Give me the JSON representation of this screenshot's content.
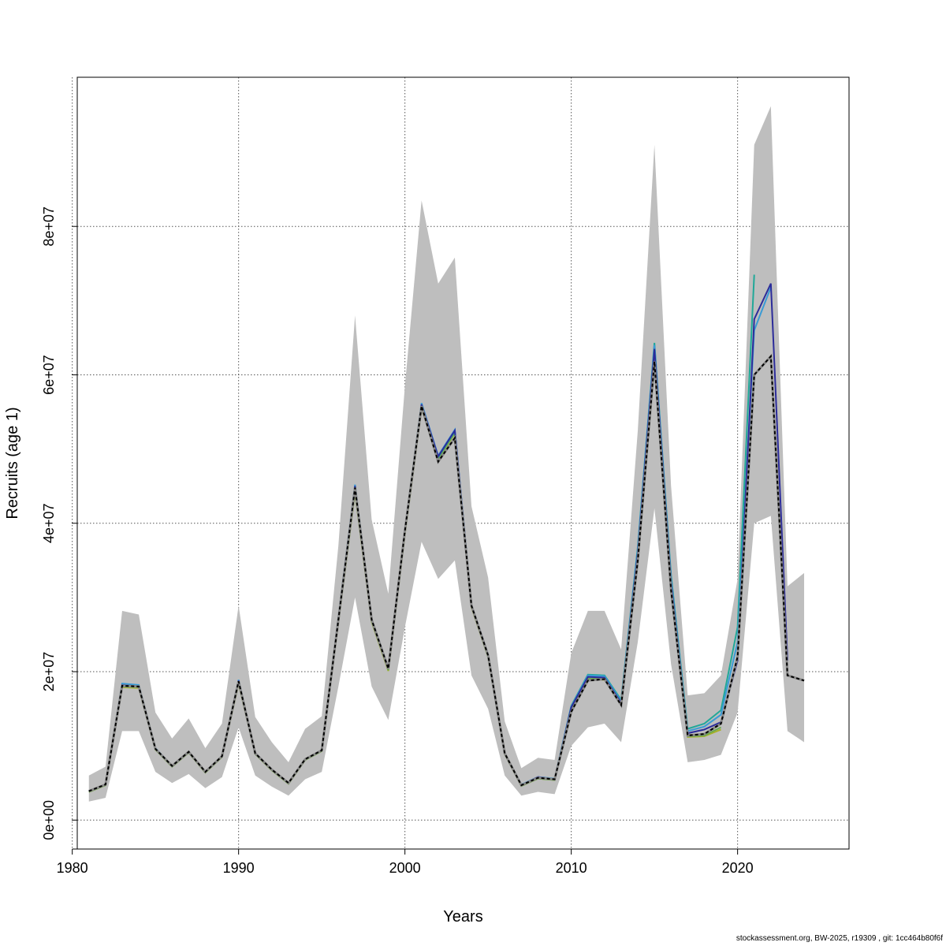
{
  "chart_data": {
    "type": "line",
    "xlabel": "Years",
    "ylabel": "Recruits (age 1)",
    "xlim": [
      1980.3,
      2026.7
    ],
    "ylim": [
      -3900000.0,
      100100000.0
    ],
    "x_ticks": [
      1980,
      1990,
      2000,
      2010,
      2020
    ],
    "x_tick_labels": [
      "1980",
      "1990",
      "2000",
      "2010",
      "2020"
    ],
    "y_ticks": [
      0,
      20000000,
      40000000,
      60000000,
      80000000
    ],
    "y_tick_labels": [
      "0e+00",
      "2e+07",
      "4e+07",
      "6e+07",
      "8e+07"
    ],
    "grid": true,
    "band_color": "#bebebe",
    "band": {
      "x": [
        1981,
        1982,
        1983,
        1984,
        1985,
        1986,
        1987,
        1988,
        1989,
        1990,
        1991,
        1992,
        1993,
        1994,
        1995,
        1996,
        1997,
        1998,
        1999,
        2000,
        2001,
        2002,
        2003,
        2004,
        2005,
        2006,
        2007,
        2008,
        2009,
        2010,
        2011,
        2012,
        2013,
        2014,
        2015,
        2016,
        2017,
        2018,
        2019,
        2020,
        2021,
        2022,
        2023,
        2024
      ],
      "lower": [
        2500000,
        3000000,
        12000000,
        12000000,
        6500000,
        5000000,
        6200000,
        4300000,
        5800000,
        12500000,
        6000000,
        4500000,
        3300000,
        5500000,
        6500000,
        18000000,
        30000000,
        18000000,
        13500000,
        26000000,
        37500000,
        32500000,
        35000000,
        19500000,
        15000000,
        6000000,
        3300000,
        3800000,
        3500000,
        10000000,
        12500000,
        13000000,
        10500000,
        24000000,
        42000000,
        21000000,
        7800000,
        8100000,
        8800000,
        14500000,
        40000000,
        41000000,
        12000000,
        10500000
      ],
      "upper": [
        6000000,
        7200000,
        28200000,
        27700000,
        14500000,
        11000000,
        13700000,
        9700000,
        13000000,
        28900000,
        13900000,
        10500000,
        7800000,
        12300000,
        14000000,
        37000000,
        68000000,
        40500000,
        30500000,
        58500000,
        83500000,
        72300000,
        75800000,
        42300000,
        32700000,
        13300000,
        7000000,
        8400000,
        8100000,
        22500000,
        28200000,
        28200000,
        23000000,
        52500000,
        91000000,
        45000000,
        16800000,
        17100000,
        19500000,
        32500000,
        91000000,
        96200000,
        31500000,
        33300000
      ]
    },
    "series": [
      {
        "color": "#000000",
        "dashed": true,
        "x": [
          1981,
          1982,
          1983,
          1984,
          1985,
          1986,
          1987,
          1988,
          1989,
          1990,
          1991,
          1992,
          1993,
          1994,
          1995,
          1996,
          1997,
          1998,
          1999,
          2000,
          2001,
          2002,
          2003,
          2004,
          2005,
          2006,
          2007,
          2008,
          2009,
          2010,
          2011,
          2012,
          2013,
          2014,
          2015,
          2016,
          2017,
          2018,
          2019,
          2020,
          2021,
          2022,
          2023,
          2024
        ],
        "values": [
          3900000,
          4800000,
          18100000,
          18000000,
          9600000,
          7300000,
          9200000,
          6500000,
          8600000,
          18700000,
          9000000,
          6800000,
          5000000,
          8200000,
          9400000,
          27000000,
          44800000,
          27000000,
          20400000,
          39000000,
          55800000,
          48300000,
          51500000,
          28900000,
          22200000,
          9000000,
          4700000,
          5700000,
          5500000,
          14600000,
          18800000,
          19000000,
          15500000,
          35000000,
          61800000,
          31000000,
          11400000,
          11600000,
          13000000,
          22000000,
          60000000,
          62500000,
          19500000,
          18800000
        ]
      },
      {
        "color": "#2c2c9a",
        "dashed": false,
        "x": [
          1981,
          1982,
          1983,
          1984,
          1985,
          1986,
          1987,
          1988,
          1989,
          1990,
          1991,
          1992,
          1993,
          1994,
          1995,
          1996,
          1997,
          1998,
          1999,
          2000,
          2001,
          2002,
          2003,
          2004,
          2005,
          2006,
          2007,
          2008,
          2009,
          2010,
          2011,
          2012,
          2013,
          2014,
          2015,
          2016,
          2017,
          2018,
          2019,
          2020,
          2021,
          2022,
          2023
        ],
        "values": [
          3900000,
          4800000,
          18200000,
          18000000,
          9600000,
          7300000,
          9200000,
          6500000,
          8600000,
          18800000,
          9000000,
          6800000,
          5000000,
          8200000,
          9400000,
          27200000,
          45000000,
          27000000,
          20400000,
          39000000,
          56000000,
          49000000,
          52500000,
          29000000,
          22300000,
          9000000,
          4700000,
          5800000,
          5500000,
          15200000,
          19300000,
          19200000,
          15800000,
          36000000,
          63500000,
          32000000,
          11700000,
          12200000,
          13200000,
          21500000,
          67500000,
          72300000,
          21500000
        ]
      },
      {
        "color": "#3a9bd5",
        "dashed": false,
        "x": [
          1981,
          1982,
          1983,
          1984,
          1985,
          1986,
          1987,
          1988,
          1989,
          1990,
          1991,
          1992,
          1993,
          1994,
          1995,
          1996,
          1997,
          1998,
          1999,
          2000,
          2001,
          2002,
          2003,
          2004,
          2005,
          2006,
          2007,
          2008,
          2009,
          2010,
          2011,
          2012,
          2013,
          2014,
          2015,
          2016,
          2017,
          2018,
          2019,
          2020,
          2021,
          2022
        ],
        "values": [
          3900000,
          4800000,
          18400000,
          18200000,
          9700000,
          7300000,
          9200000,
          6500000,
          8600000,
          18900000,
          9000000,
          6800000,
          5000000,
          8200000,
          9400000,
          27300000,
          45200000,
          27100000,
          20500000,
          39100000,
          56200000,
          49100000,
          52600000,
          29000000,
          22300000,
          9000000,
          4800000,
          5800000,
          5600000,
          15300000,
          19500000,
          19400000,
          16000000,
          36500000,
          64000000,
          32500000,
          12000000,
          12600000,
          14200000,
          24000000,
          66000000,
          71800000
        ]
      },
      {
        "color": "#20a898",
        "dashed": false,
        "x": [
          1981,
          1982,
          1983,
          1984,
          1985,
          1986,
          1987,
          1988,
          1989,
          1990,
          1991,
          1992,
          1993,
          1994,
          1995,
          1996,
          1997,
          1998,
          1999,
          2000,
          2001,
          2002,
          2003,
          2004,
          2005,
          2006,
          2007,
          2008,
          2009,
          2010,
          2011,
          2012,
          2013,
          2014,
          2015,
          2016,
          2017,
          2018,
          2019,
          2020,
          2021
        ],
        "values": [
          3900000,
          4800000,
          18200000,
          18000000,
          9600000,
          7300000,
          9200000,
          6500000,
          8600000,
          18700000,
          9000000,
          6800000,
          5000000,
          8200000,
          9400000,
          27100000,
          44800000,
          27000000,
          20400000,
          39000000,
          55900000,
          48900000,
          52400000,
          28900000,
          22200000,
          9000000,
          4700000,
          5700000,
          5500000,
          15400000,
          19600000,
          19500000,
          16200000,
          36800000,
          64300000,
          33000000,
          12300000,
          13000000,
          14800000,
          26000000,
          73500000
        ]
      },
      {
        "color": "#6aa84f",
        "dashed": false,
        "x": [
          1981,
          1982,
          1983,
          1984,
          1985,
          1986,
          1987,
          1988,
          1989,
          1990,
          1991,
          1992,
          1993,
          1994,
          1995,
          1996,
          1997,
          1998,
          1999,
          2000,
          2001,
          2002,
          2003,
          2004,
          2005,
          2006,
          2007,
          2008,
          2009,
          2010,
          2011,
          2012,
          2013,
          2014,
          2015,
          2016,
          2017,
          2018,
          2019
        ],
        "values": [
          3800000,
          4700000,
          18000000,
          17900000,
          9500000,
          7200000,
          9100000,
          6400000,
          8500000,
          18500000,
          8900000,
          6700000,
          4900000,
          8100000,
          9300000,
          26800000,
          44300000,
          26800000,
          20200000,
          38700000,
          55600000,
          48700000,
          52200000,
          28800000,
          22000000,
          8900000,
          4600000,
          5600000,
          5400000,
          15000000,
          19100000,
          19000000,
          15700000,
          35500000,
          62000000,
          31500000,
          11300000,
          11400000,
          12500000
        ]
      },
      {
        "color": "#a8b026",
        "dashed": false,
        "x": [
          1981,
          1982,
          1983,
          1984,
          1985,
          1986,
          1987,
          1988,
          1989,
          1990,
          1991,
          1992,
          1993,
          1994,
          1995,
          1996,
          1997,
          1998,
          1999,
          2000,
          2001,
          2002,
          2003,
          2004,
          2005,
          2006,
          2007,
          2008,
          2009,
          2010,
          2011,
          2012,
          2013,
          2014,
          2015,
          2016,
          2017,
          2018,
          2019
        ],
        "values": [
          3800000,
          4700000,
          17900000,
          17800000,
          9500000,
          7200000,
          9100000,
          6400000,
          8500000,
          18400000,
          8900000,
          6700000,
          4900000,
          8100000,
          9300000,
          26700000,
          44200000,
          26700000,
          20100000,
          38600000,
          55500000,
          48600000,
          52100000,
          28700000,
          22000000,
          8900000,
          4600000,
          5600000,
          5400000,
          15000000,
          19000000,
          18900000,
          15600000,
          35300000,
          61600000,
          31300000,
          11200000,
          11300000,
          12200000
        ]
      }
    ]
  },
  "footer": {
    "text": "stockassessment.org, BW-2025, r19309 , git: 1cc464b80f6f"
  }
}
